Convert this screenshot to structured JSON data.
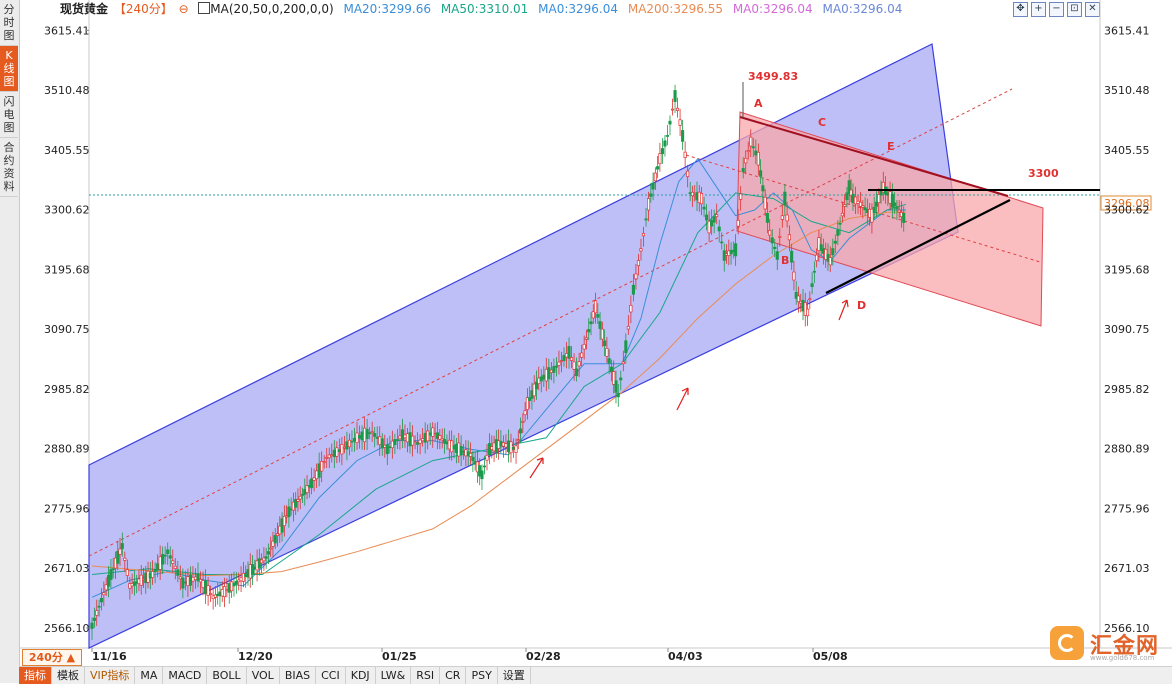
{
  "left_tabs": [
    {
      "label": "分时图",
      "active": false
    },
    {
      "label": "K线图",
      "active": true
    },
    {
      "label": "闪电图",
      "active": false
    },
    {
      "label": "合约资料",
      "active": false
    }
  ],
  "header": {
    "symbol": "现货黄金",
    "period": "【240分】",
    "ma_config": "MA(20,50,0,200,0,0)",
    "ma_values": [
      {
        "label": "MA20:3299.66",
        "color": "#3a8ed8"
      },
      {
        "label": "MA50:3310.01",
        "color": "#1aa58a"
      },
      {
        "label": "MA0:3296.04",
        "color": "#3a8ed8"
      },
      {
        "label": "MA200:3296.55",
        "color": "#e98b52"
      },
      {
        "label": "MA0:3296.04",
        "color": "#d36ad8"
      },
      {
        "label": "MA0:3296.04",
        "color": "#6b88d8"
      }
    ],
    "icons": [
      "move-icon",
      "zoom-in-icon",
      "zoom-out-icon",
      "fit-icon",
      "close-icon"
    ]
  },
  "period_selector": "240分 ▲",
  "bottom_tabs": [
    {
      "label": "指标",
      "active": true
    },
    {
      "label": "模板",
      "active": false
    },
    {
      "label": "VIP指标",
      "active": false,
      "vip": true
    },
    {
      "label": "MA",
      "active": false
    },
    {
      "label": "MACD",
      "active": false
    },
    {
      "label": "BOLL",
      "active": false
    },
    {
      "label": "VOL",
      "active": false
    },
    {
      "label": "BIAS",
      "active": false
    },
    {
      "label": "CCI",
      "active": false
    },
    {
      "label": "KDJ",
      "active": false
    },
    {
      "label": "LW&",
      "active": false
    },
    {
      "label": "RSI",
      "active": false
    },
    {
      "label": "CR",
      "active": false
    },
    {
      "label": "PSY",
      "active": false
    },
    {
      "label": "设置",
      "active": false
    }
  ],
  "logo": {
    "text": "汇金网",
    "sub": "www.gold678.com"
  },
  "chart_data": {
    "type": "line",
    "y_ticks": [
      3615.41,
      3510.48,
      3405.55,
      3300.62,
      3195.68,
      3090.75,
      2985.82,
      2880.89,
      2775.96,
      2671.03,
      2566.1
    ],
    "ylim": [
      2545.0,
      3630.0
    ],
    "x_tick_labels": [
      "11/16",
      "12/20",
      "01/25",
      "02/28",
      "04/03",
      "05/08"
    ],
    "x_ticks": [
      0,
      35,
      70,
      105,
      140,
      175
    ],
    "xlim": [
      0,
      243
    ],
    "current_price": 3296.08,
    "high_label": "3499.83",
    "level_label": "3300",
    "point_labels": [
      "A",
      "B",
      "C",
      "D",
      "E"
    ],
    "series": [
      {
        "name": "price",
        "color": "#e04848",
        "x": [
          0,
          5,
          8,
          10,
          13,
          16,
          20,
          24,
          28,
          32,
          35,
          40,
          46,
          52,
          58,
          62,
          66,
          70,
          74,
          78,
          82,
          86,
          90,
          95,
          100,
          103,
          105,
          108,
          112,
          115,
          118,
          122,
          126,
          128,
          130,
          133,
          136,
          139,
          141,
          143,
          145,
          147,
          150,
          152,
          154,
          156,
          158,
          161,
          163,
          165,
          167,
          170,
          172,
          174,
          176,
          179,
          181,
          183,
          186,
          189,
          192,
          195,
          197,
          200,
          201,
          203,
          206,
          209,
          212,
          215
        ],
        "values": [
          2570,
          2660,
          2710,
          2640,
          2650,
          2660,
          2700,
          2645,
          2655,
          2620,
          2630,
          2655,
          2690,
          2770,
          2820,
          2865,
          2880,
          2900,
          2910,
          2880,
          2905,
          2890,
          2910,
          2885,
          2870,
          2835,
          2880,
          2890,
          2880,
          2960,
          3000,
          3020,
          3050,
          3015,
          3060,
          3130,
          3050,
          2975,
          3060,
          3160,
          3230,
          3310,
          3390,
          3430,
          3500,
          3430,
          3330,
          3320,
          3270,
          3290,
          3220,
          3230,
          3370,
          3420,
          3390,
          3260,
          3220,
          3320,
          3150,
          3120,
          3240,
          3210,
          3260,
          3340,
          3320,
          3310,
          3290,
          3340,
          3310,
          3280
        ]
      },
      {
        "name": "MA20",
        "color": "#3a8ed8",
        "x": [
          0,
          10,
          20,
          30,
          40,
          50,
          60,
          70,
          80,
          90,
          100,
          110,
          120,
          130,
          140,
          145,
          150,
          155,
          160,
          165,
          170,
          175,
          180,
          185,
          190,
          195,
          200,
          210,
          215
        ],
        "values": [
          2620,
          2650,
          2665,
          2650,
          2640,
          2705,
          2795,
          2860,
          2895,
          2895,
          2880,
          2870,
          2950,
          3030,
          3030,
          3110,
          3240,
          3350,
          3390,
          3340,
          3290,
          3300,
          3330,
          3300,
          3230,
          3210,
          3250,
          3300,
          3300
        ]
      },
      {
        "name": "MA50",
        "color": "#1aa58a",
        "x": [
          0,
          15,
          30,
          45,
          60,
          75,
          90,
          105,
          120,
          130,
          140,
          150,
          160,
          170,
          180,
          190,
          200,
          210,
          215
        ],
        "values": [
          2660,
          2670,
          2660,
          2660,
          2730,
          2810,
          2860,
          2880,
          2900,
          2990,
          3030,
          3120,
          3260,
          3330,
          3320,
          3280,
          3260,
          3300,
          3310
        ]
      },
      {
        "name": "MA200",
        "color": "#e98b52",
        "x": [
          0,
          30,
          40,
          50,
          60,
          70,
          80,
          90,
          100,
          110,
          120,
          130,
          140,
          150,
          160,
          170,
          180,
          190,
          200,
          210,
          215
        ],
        "values": [
          2675,
          2658,
          2660,
          2665,
          2682,
          2700,
          2720,
          2740,
          2780,
          2830,
          2880,
          2930,
          2980,
          3040,
          3110,
          3170,
          3220,
          3260,
          3285,
          3296,
          3296
        ]
      }
    ]
  }
}
